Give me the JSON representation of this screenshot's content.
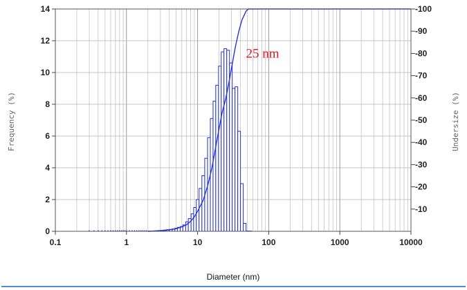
{
  "chart_data": {
    "type": "bar",
    "xlabel": "Diameter (nm)",
    "ylabel_left": "Frequency (%)",
    "ylabel_right": "Undersize (%)",
    "x_scale": "log",
    "xlim": [
      0.1,
      10000
    ],
    "ylim_left": [
      0,
      14
    ],
    "ylim_right": [
      0,
      100
    ],
    "x_ticks": [
      0.1,
      1,
      10,
      100,
      1000,
      10000
    ],
    "x_tick_labels": [
      "0.1",
      "1",
      "10",
      "100",
      "1000",
      "10000"
    ],
    "y_left_ticks": [
      0,
      2,
      4,
      6,
      8,
      10,
      12,
      14
    ],
    "y_left_tick_labels": [
      "0",
      "2",
      "4",
      "6",
      "8",
      "10",
      "12",
      "14"
    ],
    "y_right_ticks": [
      10,
      20,
      30,
      40,
      50,
      60,
      70,
      80,
      90,
      100
    ],
    "y_right_tick_labels": [
      "10",
      "20",
      "30",
      "40",
      "50",
      "60",
      "70",
      "80",
      "90",
      "100"
    ],
    "grid": true,
    "annotation": {
      "text": "25 nm",
      "x": 40,
      "y_right": 80,
      "color": "#e0141e"
    },
    "bar_color": "#1f2fd6",
    "curve_color": "#2a33d8",
    "bin_edges": [
      2.0,
      2.2,
      2.4,
      2.6,
      2.8,
      3.0,
      3.3,
      3.6,
      4.0,
      4.4,
      4.8,
      5.2,
      5.7,
      6.2,
      6.8,
      7.4,
      8.1,
      8.8,
      9.6,
      10.5,
      11.5,
      12.6,
      13.8,
      15.1,
      16.5,
      18.0,
      19.7,
      21.5,
      23.5,
      25.7,
      28.1,
      30.7,
      33.6,
      36.7,
      40.1,
      43.9,
      48.0,
      52.5,
      57.5
    ],
    "frequency": [
      0.02,
      0.02,
      0.03,
      0.04,
      0.05,
      0.06,
      0.08,
      0.1,
      0.12,
      0.15,
      0.2,
      0.25,
      0.3,
      0.4,
      0.6,
      0.8,
      1.1,
      1.5,
      2.0,
      2.7,
      3.5,
      4.6,
      5.9,
      7.1,
      8.2,
      9.2,
      10.4,
      11.3,
      11.5,
      11.4,
      10.6,
      9.0,
      9.1,
      6.3,
      3.0,
      0.5,
      0.02,
      0.02
    ],
    "undersize_curve": {
      "x": [
        2.0,
        3.0,
        4.0,
        5.0,
        6.0,
        7.0,
        8.0,
        9.0,
        10.0,
        12.0,
        14.0,
        16.0,
        18.0,
        20.0,
        22.0,
        25.0,
        28.0,
        31.0,
        34.0,
        38.0,
        42.0,
        48.0,
        52.0,
        55.0,
        60.0,
        10000.0
      ],
      "y": [
        0,
        0.2,
        0.6,
        1.2,
        2,
        3,
        4.5,
        6.5,
        9,
        14,
        21,
        29,
        38,
        46,
        53,
        60,
        68,
        76,
        83,
        90,
        95,
        99,
        100,
        100,
        100,
        100
      ]
    },
    "scatter_dots_x": [
      0.3,
      0.35,
      0.4,
      0.45,
      0.5,
      0.55,
      0.6,
      0.65,
      0.7,
      0.75,
      0.8,
      0.85,
      0.9,
      0.95,
      1.0,
      1.1,
      1.2,
      1.3,
      1.4,
      1.5,
      1.6,
      1.7,
      1.8,
      1.9
    ]
  }
}
